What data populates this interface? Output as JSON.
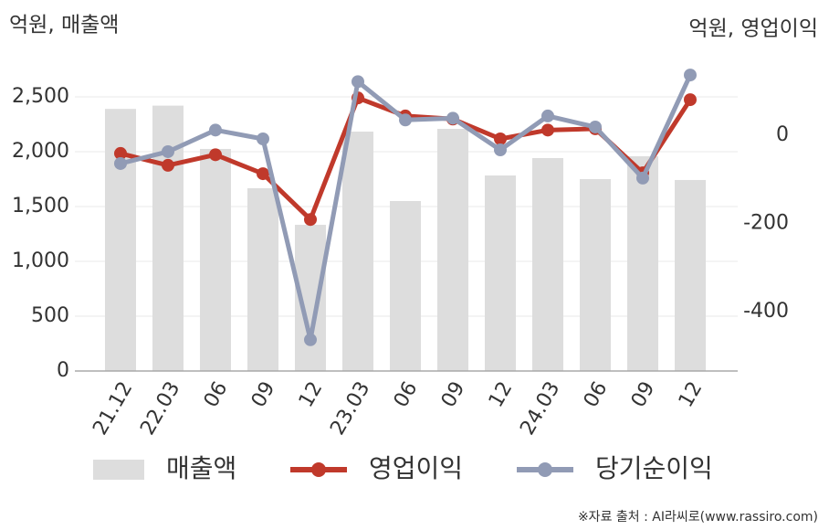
{
  "chart_data": {
    "type": "combo",
    "y_label": "억원, 매출액",
    "y2_label": "억원, 영업이익",
    "source": "※자료 출처 : AI라씨로(www.rassiro.com)",
    "categories": [
      "21.12",
      "22.03",
      "06",
      "09",
      "12",
      "23.03",
      "06",
      "09",
      "12",
      "24.03",
      "06",
      "09",
      "12"
    ],
    "series": [
      {
        "name": "매출액",
        "type": "bar",
        "color": "#dddddd",
        "values": [
          2390,
          2420,
          2025,
          1667,
          1333,
          2183,
          1550,
          2208,
          1783,
          1942,
          1750,
          1958,
          1742
        ]
      },
      {
        "name": "영업이익",
        "type": "line",
        "axis": "y2",
        "color": "#c0392b",
        "values": [
          -41,
          -68,
          -44,
          -87,
          -191,
          85,
          44,
          37,
          -8,
          12,
          15,
          -85,
          81
        ]
      },
      {
        "name": "당기순이익",
        "type": "line",
        "axis": "y2",
        "color": "#919bb5",
        "values": [
          -64,
          -37,
          12,
          -8,
          -464,
          122,
          35,
          39,
          -33,
          44,
          19,
          -97,
          137
        ]
      }
    ],
    "ylim": [
      0,
      2900
    ],
    "yticks": [
      0,
      500,
      {
        "value": 1000,
        "label": "1,000"
      },
      {
        "value": 1500,
        "label": "1,500"
      },
      {
        "value": 2000,
        "label": "2,000"
      },
      {
        "value": 2500,
        "label": "2,500"
      }
    ],
    "y2lim": [
      -535,
      187
    ],
    "y2ticks": [
      0,
      -200,
      -400
    ],
    "grid": true
  }
}
